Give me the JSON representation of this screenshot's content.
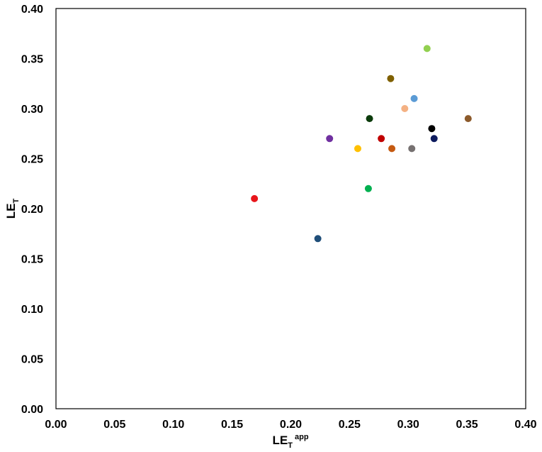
{
  "chart_data": {
    "type": "scatter",
    "title": "",
    "xlabel": {
      "main": "LE",
      "sub": "T",
      "sup": " app"
    },
    "ylabel": {
      "main": "LE",
      "sub": "T"
    },
    "xlim": [
      0,
      0.4
    ],
    "ylim": [
      0,
      0.4
    ],
    "x_ticks": [
      "0.00",
      "0.05",
      "0.10",
      "0.15",
      "0.20",
      "0.25",
      "0.30",
      "0.35",
      "0.40"
    ],
    "y_ticks": [
      "0.00",
      "0.05",
      "0.10",
      "0.15",
      "0.20",
      "0.25",
      "0.30",
      "0.35",
      "0.40"
    ],
    "grid": false,
    "legend": "none",
    "points": [
      {
        "x": 0.169,
        "y": 0.21,
        "color": "#e8151b"
      },
      {
        "x": 0.223,
        "y": 0.17,
        "color": "#1f4e79"
      },
      {
        "x": 0.233,
        "y": 0.27,
        "color": "#7030a0"
      },
      {
        "x": 0.257,
        "y": 0.26,
        "color": "#ffc000"
      },
      {
        "x": 0.266,
        "y": 0.22,
        "color": "#00b050"
      },
      {
        "x": 0.267,
        "y": 0.29,
        "color": "#0b3b0b"
      },
      {
        "x": 0.277,
        "y": 0.27,
        "color": "#c00000"
      },
      {
        "x": 0.285,
        "y": 0.33,
        "color": "#7f6000"
      },
      {
        "x": 0.286,
        "y": 0.26,
        "color": "#c55a11"
      },
      {
        "x": 0.297,
        "y": 0.3,
        "color": "#f4b183"
      },
      {
        "x": 0.303,
        "y": 0.26,
        "color": "#767171"
      },
      {
        "x": 0.305,
        "y": 0.31,
        "color": "#5b9bd5"
      },
      {
        "x": 0.316,
        "y": 0.36,
        "color": "#92d050"
      },
      {
        "x": 0.32,
        "y": 0.28,
        "color": "#000000"
      },
      {
        "x": 0.322,
        "y": 0.27,
        "color": "#0d1b5e"
      },
      {
        "x": 0.351,
        "y": 0.29,
        "color": "#8c5a2b"
      }
    ]
  }
}
